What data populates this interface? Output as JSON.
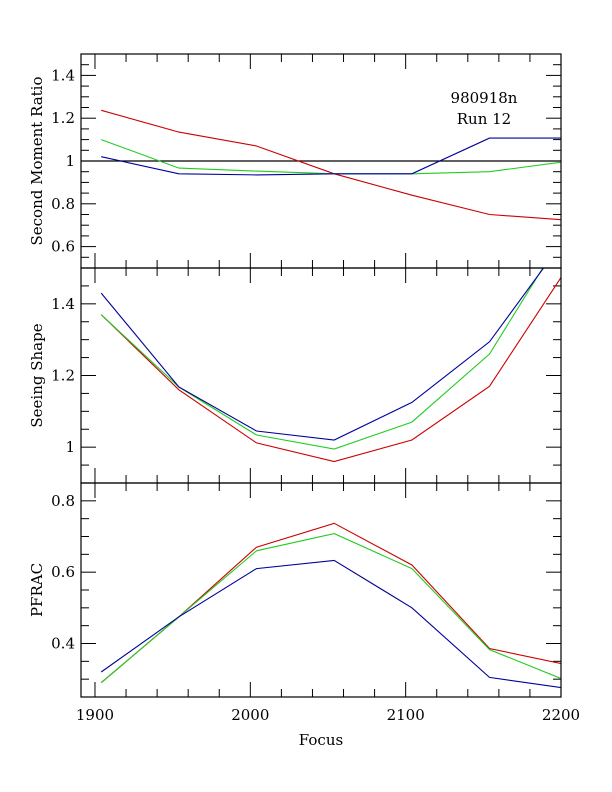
{
  "chart_data": [
    {
      "type": "line",
      "ylabel": "Second Moment Ratio",
      "xlabel": "",
      "xlim": [
        1891,
        2200
      ],
      "ylim": [
        0.5,
        1.5
      ],
      "yticks": [
        0.6,
        0.8,
        1,
        1.2,
        1.4
      ],
      "yticklabels": [
        "0.6",
        "0.8",
        "1",
        "1.2",
        "1.4"
      ],
      "reference_line": 1,
      "annotation": [
        "980918n",
        "Run 12"
      ],
      "x": [
        1904,
        1954,
        2004,
        2054,
        2104,
        2154,
        2204
      ],
      "series": [
        {
          "name": "red",
          "color": "#cc0000",
          "values": [
            1.237,
            1.135,
            1.07,
            0.94,
            0.84,
            0.75,
            0.724
          ]
        },
        {
          "name": "green",
          "color": "#22cc22",
          "values": [
            1.1,
            0.967,
            0.953,
            0.94,
            0.94,
            0.95,
            0.998
          ]
        },
        {
          "name": "blue",
          "color": "#000099",
          "values": [
            1.02,
            0.94,
            0.935,
            0.94,
            0.94,
            1.107,
            1.107
          ]
        }
      ]
    },
    {
      "type": "line",
      "ylabel": "Seeing Shape",
      "xlabel": "",
      "xlim": [
        1891,
        2200
      ],
      "ylim": [
        0.9,
        1.5
      ],
      "yticks": [
        1,
        1.2,
        1.4
      ],
      "yticklabels": [
        "1",
        "1.2",
        "1.4"
      ],
      "x": [
        1904,
        1954,
        2004,
        2054,
        2104,
        2154,
        2204
      ],
      "series": [
        {
          "name": "red",
          "color": "#cc0000",
          "values": [
            1.37,
            1.16,
            1.012,
            0.96,
            1.02,
            1.17,
            1.5
          ]
        },
        {
          "name": "green",
          "color": "#22cc22",
          "values": [
            1.37,
            1.168,
            1.034,
            0.995,
            1.07,
            1.26,
            1.61
          ]
        },
        {
          "name": "blue",
          "color": "#000099",
          "values": [
            1.43,
            1.168,
            1.045,
            1.02,
            1.125,
            1.294,
            1.59
          ]
        }
      ]
    },
    {
      "type": "line",
      "ylabel": "PFRAC",
      "xlabel": "Focus",
      "xlim": [
        1891,
        2200
      ],
      "ylim": [
        0.25,
        0.85
      ],
      "yticks": [
        0.4,
        0.6,
        0.8
      ],
      "yticklabels": [
        "0.4",
        "0.6",
        "0.8"
      ],
      "xticks": [
        1900,
        2000,
        2100,
        2200
      ],
      "xticklabels": [
        "1900",
        "2000",
        "2100",
        "2200"
      ],
      "x": [
        1904,
        1954,
        2004,
        2054,
        2104,
        2154,
        2204
      ],
      "series": [
        {
          "name": "red",
          "color": "#cc0000",
          "values": [
            0.29,
            0.475,
            0.67,
            0.737,
            0.62,
            0.386,
            0.34
          ]
        },
        {
          "name": "green",
          "color": "#22cc22",
          "values": [
            0.29,
            0.475,
            0.66,
            0.708,
            0.61,
            0.383,
            0.295
          ]
        },
        {
          "name": "blue",
          "color": "#000099",
          "values": [
            0.32,
            0.475,
            0.61,
            0.633,
            0.5,
            0.305,
            0.274
          ]
        }
      ]
    }
  ]
}
